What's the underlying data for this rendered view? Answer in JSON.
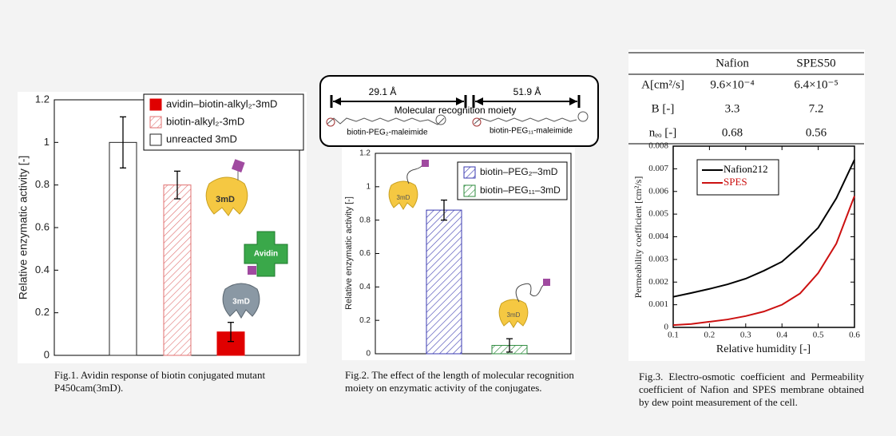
{
  "chart_data": [
    {
      "type": "bar",
      "y_label": "Relative enzymatic activity [-]",
      "ylim": [
        0,
        1.2
      ],
      "yticks": [
        0,
        0.2,
        0.4,
        0.6,
        0.8,
        1,
        1.2
      ],
      "legend": "upper right",
      "series": [
        {
          "name": "avidin–biotin-alkyl₂-3mD",
          "color": "#e00000",
          "hatch": false,
          "values": [
            0.11
          ],
          "errors": [
            0.045
          ]
        },
        {
          "name": "biotin-alkyl₂-3mD",
          "color": "#e07070",
          "hatch": true,
          "values": [
            0.8
          ],
          "errors": [
            0.065
          ]
        },
        {
          "name": "unreacted 3mD",
          "color": "#ffffff",
          "hatch": false,
          "values": [
            1.0
          ],
          "errors": [
            0.12
          ]
        }
      ],
      "annotations": [
        "3mD",
        "Avidin",
        "3mD"
      ],
      "caption": "Fig.1. Avidin response of biotin conjugated mutant P450cam(3mD)."
    },
    {
      "type": "bar",
      "y_label": "Relative enzymatic activity [-]",
      "ylim": [
        0,
        1.2
      ],
      "yticks": [
        0,
        0.2,
        0.4,
        0.6,
        0.8,
        1,
        1.2
      ],
      "legend": "upper right",
      "series": [
        {
          "name": "biotin–PEG₂–3mD",
          "color": "#3a3ab0",
          "hatch": true,
          "values": [
            0.86
          ],
          "errors": [
            0.06
          ]
        },
        {
          "name": "biotin–PEG₁₁–3mD",
          "color": "#2e8b3e",
          "hatch": true,
          "values": [
            0.05
          ],
          "errors": [
            0.04
          ]
        }
      ],
      "annotations": [
        "3mD",
        "3mD"
      ],
      "diagram": {
        "lengths": [
          "29.1 Å",
          "51.9 Å"
        ],
        "label": "Molecular recognition moiety",
        "molecules": [
          "biotin-PEG₂-maleimide",
          "biotin-PEG₁₁-maleimide"
        ]
      },
      "caption": "Fig.2. The effect of the length of molecular recognition moiety on enzymatic activity of the conjugates."
    },
    {
      "type": "line",
      "x_label": "Relative humidity [-]",
      "y_label": "Permeability coefficient [cm²/s]",
      "xlim": [
        0.1,
        0.6
      ],
      "xticks": [
        0.1,
        0.2,
        0.3,
        0.4,
        0.5,
        0.6
      ],
      "ylim": [
        0,
        0.008
      ],
      "yticks": [
        0,
        0.001,
        0.002,
        0.003,
        0.004,
        0.005,
        0.006,
        0.007,
        0.008
      ],
      "legend": "upper left",
      "x": [
        0.1,
        0.15,
        0.2,
        0.25,
        0.3,
        0.35,
        0.4,
        0.45,
        0.5,
        0.55,
        0.6
      ],
      "series": [
        {
          "name": "Nafion212",
          "color": "#000000",
          "values": [
            0.00135,
            0.00152,
            0.0017,
            0.0019,
            0.00215,
            0.0025,
            0.0029,
            0.0036,
            0.0044,
            0.0057,
            0.0074
          ]
        },
        {
          "name": "SPES",
          "color": "#cc1111",
          "values": [
            0.0001,
            0.00015,
            0.00025,
            0.00035,
            0.0005,
            0.0007,
            0.001,
            0.0015,
            0.0024,
            0.0037,
            0.0058
          ]
        }
      ],
      "caption": "Fig.3. Electro-osmotic coefficient and Permeability coefficient of Nafion and SPES membrane obtained by dew point measurement of the cell."
    }
  ],
  "table": {
    "header": [
      "Nafion",
      "SPES50"
    ],
    "rows": [
      [
        "A[cm²/s]",
        "9.6×10⁻⁴",
        "6.4×10⁻⁵"
      ],
      [
        "B [-]",
        "3.3",
        "7.2"
      ],
      [
        "nₑₒ [-]",
        "0.68",
        "0.56"
      ]
    ]
  }
}
